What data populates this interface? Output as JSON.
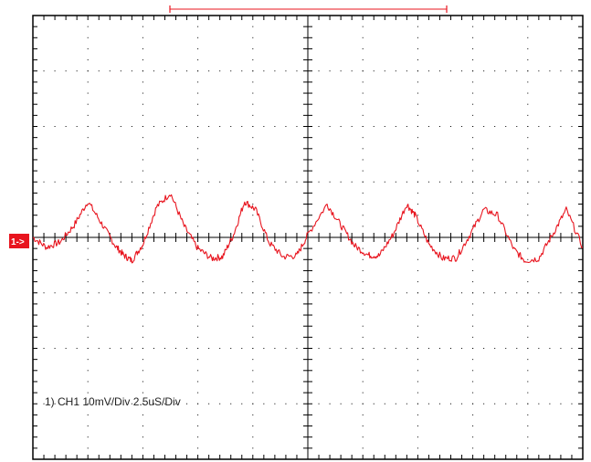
{
  "chart_data": {
    "type": "line",
    "title": "",
    "xlabel": "",
    "ylabel": "",
    "divisions": {
      "x": 10,
      "y": 8
    },
    "xlim": [
      0,
      10
    ],
    "ylim": [
      -4,
      4
    ],
    "grid": true,
    "channel_marker": "1->",
    "annotation": "1) CH1 10mV/Div 2.5uS/Div",
    "trigger_bar": {
      "start_div": 5.0,
      "end_div": 15.1
    },
    "colors": {
      "trace": "#e8141e",
      "grid": "#000000",
      "marker_bg": "#e8141e"
    },
    "series": [
      {
        "x": [
          0.0,
          0.25,
          0.5,
          0.75,
          1.0,
          1.25,
          1.5,
          1.65,
          1.8,
          2.0,
          2.25,
          2.5,
          2.75,
          3.0,
          3.25,
          3.45,
          3.65,
          3.85,
          4.05,
          4.3,
          4.55,
          4.8,
          5.0,
          5.35,
          5.6,
          5.85,
          6.1,
          6.3,
          6.55,
          6.8,
          6.95,
          7.2,
          7.45,
          7.7,
          7.95,
          8.2,
          8.45,
          8.75,
          8.95,
          9.2,
          9.45,
          9.7,
          10.0
        ],
        "y": [
          0.0,
          -0.18,
          -0.08,
          0.22,
          0.65,
          0.25,
          -0.15,
          -0.32,
          -0.42,
          -0.12,
          0.55,
          0.8,
          0.2,
          -0.2,
          -0.38,
          -0.35,
          0.05,
          0.65,
          0.5,
          -0.1,
          -0.35,
          -0.33,
          0.05,
          0.6,
          0.22,
          -0.15,
          -0.32,
          -0.33,
          0.05,
          0.6,
          0.4,
          -0.12,
          -0.38,
          -0.37,
          0.05,
          0.5,
          0.4,
          -0.22,
          -0.42,
          -0.38,
          0.05,
          0.5,
          -0.18
        ]
      }
    ]
  }
}
